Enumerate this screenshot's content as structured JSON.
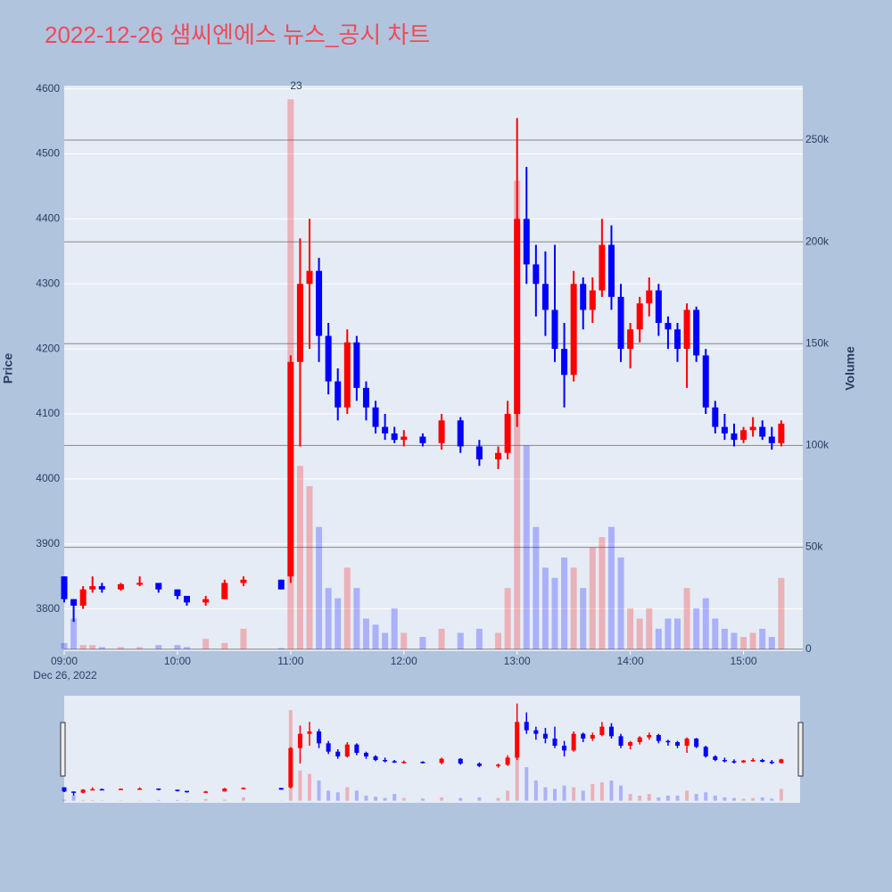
{
  "chart_data": {
    "type": "candlestick",
    "title": "2022-12-26 샘씨엔에스 뉴스_공시 차트",
    "y_title": "Price",
    "y2_title": "Volume",
    "x_date_label": "Dec 26, 2022",
    "annotation": "23",
    "increasing_color": "#ff0000",
    "decreasing_color": "#0000ff",
    "xlim": [
      "2022-12-26 09:00",
      "2022-12-26 15:30"
    ],
    "xticks": [
      {
        "value": "2022-12-26 09:00",
        "label": "09:00"
      },
      {
        "value": "2022-12-26 10:00",
        "label": "10:00"
      },
      {
        "value": "2022-12-26 11:00",
        "label": "11:00"
      },
      {
        "value": "2022-12-26 12:00",
        "label": "12:00"
      },
      {
        "value": "2022-12-26 13:00",
        "label": "13:00"
      },
      {
        "value": "2022-12-26 14:00",
        "label": "14:00"
      },
      {
        "value": "2022-12-26 15:00",
        "label": "15:00"
      }
    ],
    "ylim": [
      3735,
      4605
    ],
    "yticks": [
      3800,
      3900,
      4000,
      4100,
      4200,
      4300,
      4400,
      4500,
      4600
    ],
    "y2lim": [
      -1000,
      276700
    ],
    "y2ticks": [
      0,
      {
        "value": 50000,
        "label": "50k"
      },
      {
        "value": 100000,
        "label": "100k"
      },
      {
        "value": 150000,
        "label": "150k"
      },
      {
        "value": 200000,
        "label": "200k"
      },
      {
        "value": 250000,
        "label": "250k"
      }
    ],
    "x": [
      "2022-12-26 09:00",
      "2022-12-26 09:05",
      "2022-12-26 09:10",
      "2022-12-26 09:15",
      "2022-12-26 09:20",
      "2022-12-26 09:30",
      "2022-12-26 09:40",
      "2022-12-26 09:50",
      "2022-12-26 10:00",
      "2022-12-26 10:05",
      "2022-12-26 10:15",
      "2022-12-26 10:25",
      "2022-12-26 10:35",
      "2022-12-26 10:55",
      "2022-12-26 11:00",
      "2022-12-26 11:05",
      "2022-12-26 11:10",
      "2022-12-26 11:15",
      "2022-12-26 11:20",
      "2022-12-26 11:25",
      "2022-12-26 11:30",
      "2022-12-26 11:35",
      "2022-12-26 11:40",
      "2022-12-26 11:45",
      "2022-12-26 11:50",
      "2022-12-26 11:55",
      "2022-12-26 12:00",
      "2022-12-26 12:10",
      "2022-12-26 12:20",
      "2022-12-26 12:30",
      "2022-12-26 12:40",
      "2022-12-26 12:50",
      "2022-12-26 12:55",
      "2022-12-26 13:00",
      "2022-12-26 13:05",
      "2022-12-26 13:10",
      "2022-12-26 13:15",
      "2022-12-26 13:20",
      "2022-12-26 13:25",
      "2022-12-26 13:30",
      "2022-12-26 13:35",
      "2022-12-26 13:40",
      "2022-12-26 13:45",
      "2022-12-26 13:50",
      "2022-12-26 13:55",
      "2022-12-26 14:00",
      "2022-12-26 14:05",
      "2022-12-26 14:10",
      "2022-12-26 14:15",
      "2022-12-26 14:20",
      "2022-12-26 14:25",
      "2022-12-26 14:30",
      "2022-12-26 14:35",
      "2022-12-26 14:40",
      "2022-12-26 14:45",
      "2022-12-26 14:50",
      "2022-12-26 14:55",
      "2022-12-26 15:00",
      "2022-12-26 15:05",
      "2022-12-26 15:10",
      "2022-12-26 15:15",
      "2022-12-26 15:20"
    ],
    "open": [
      3850,
      3815,
      3805,
      3830,
      3835,
      3830,
      3838,
      3840,
      3830,
      3820,
      3810,
      3815,
      3840,
      3845,
      3850,
      4180,
      4300,
      4320,
      4220,
      4150,
      4110,
      4210,
      4140,
      4110,
      4080,
      4070,
      4060,
      4065,
      4055,
      4090,
      4050,
      4030,
      4040,
      4100,
      4400,
      4330,
      4300,
      4260,
      4200,
      4160,
      4300,
      4260,
      4290,
      4360,
      4280,
      4200,
      4230,
      4270,
      4290,
      4240,
      4230,
      4200,
      4260,
      4190,
      4110,
      4080,
      4070,
      4060,
      4075,
      4080,
      4065,
      4055
    ],
    "high": [
      3850,
      3815,
      3835,
      3850,
      3840,
      3840,
      3850,
      3840,
      3830,
      3820,
      3820,
      3845,
      3850,
      3845,
      4190,
      4370,
      4400,
      4340,
      4240,
      4170,
      4230,
      4220,
      4150,
      4120,
      4100,
      4080,
      4075,
      4070,
      4100,
      4095,
      4060,
      4050,
      4120,
      4555,
      4480,
      4360,
      4350,
      4360,
      4240,
      4320,
      4310,
      4310,
      4400,
      4390,
      4300,
      4240,
      4280,
      4310,
      4300,
      4250,
      4240,
      4270,
      4265,
      4200,
      4120,
      4100,
      4085,
      4080,
      4095,
      4090,
      4080,
      4090
    ],
    "low": [
      3810,
      3780,
      3800,
      3825,
      3825,
      3828,
      3835,
      3825,
      3815,
      3805,
      3805,
      3815,
      3835,
      3830,
      3840,
      4050,
      4200,
      4180,
      4130,
      4090,
      4100,
      4120,
      4090,
      4070,
      4060,
      4055,
      4050,
      4050,
      4045,
      4040,
      4020,
      4015,
      4030,
      4080,
      4300,
      4250,
      4220,
      4180,
      4110,
      4150,
      4230,
      4240,
      4280,
      4260,
      4180,
      4170,
      4210,
      4250,
      4220,
      4200,
      4180,
      4140,
      4180,
      4100,
      4070,
      4060,
      4050,
      4055,
      4065,
      4060,
      4045,
      4050
    ],
    "close": [
      3815,
      3805,
      3830,
      3835,
      3830,
      3838,
      3840,
      3830,
      3820,
      3810,
      3815,
      3840,
      3845,
      3830,
      4180,
      4300,
      4320,
      4220,
      4150,
      4110,
      4210,
      4140,
      4110,
      4080,
      4070,
      4060,
      4065,
      4055,
      4090,
      4050,
      4030,
      4040,
      4100,
      4400,
      4330,
      4300,
      4260,
      4200,
      4160,
      4300,
      4260,
      4290,
      4360,
      4280,
      4200,
      4230,
      4270,
      4290,
      4240,
      4230,
      4200,
      4260,
      4190,
      4110,
      4080,
      4070,
      4060,
      4075,
      4080,
      4065,
      4055,
      4085
    ],
    "volume": [
      3000,
      15000,
      2000,
      2000,
      1000,
      1000,
      1000,
      2000,
      2000,
      1000,
      5000,
      3000,
      10000,
      500,
      270000,
      90000,
      80000,
      60000,
      30000,
      25000,
      40000,
      30000,
      15000,
      12000,
      8000,
      20000,
      8000,
      6000,
      10000,
      8000,
      10000,
      8000,
      30000,
      230000,
      100000,
      60000,
      40000,
      35000,
      45000,
      40000,
      30000,
      50000,
      55000,
      60000,
      45000,
      20000,
      15000,
      20000,
      10000,
      15000,
      15000,
      30000,
      20000,
      25000,
      15000,
      10000,
      8000,
      6000,
      8000,
      10000,
      6000,
      35000
    ]
  }
}
